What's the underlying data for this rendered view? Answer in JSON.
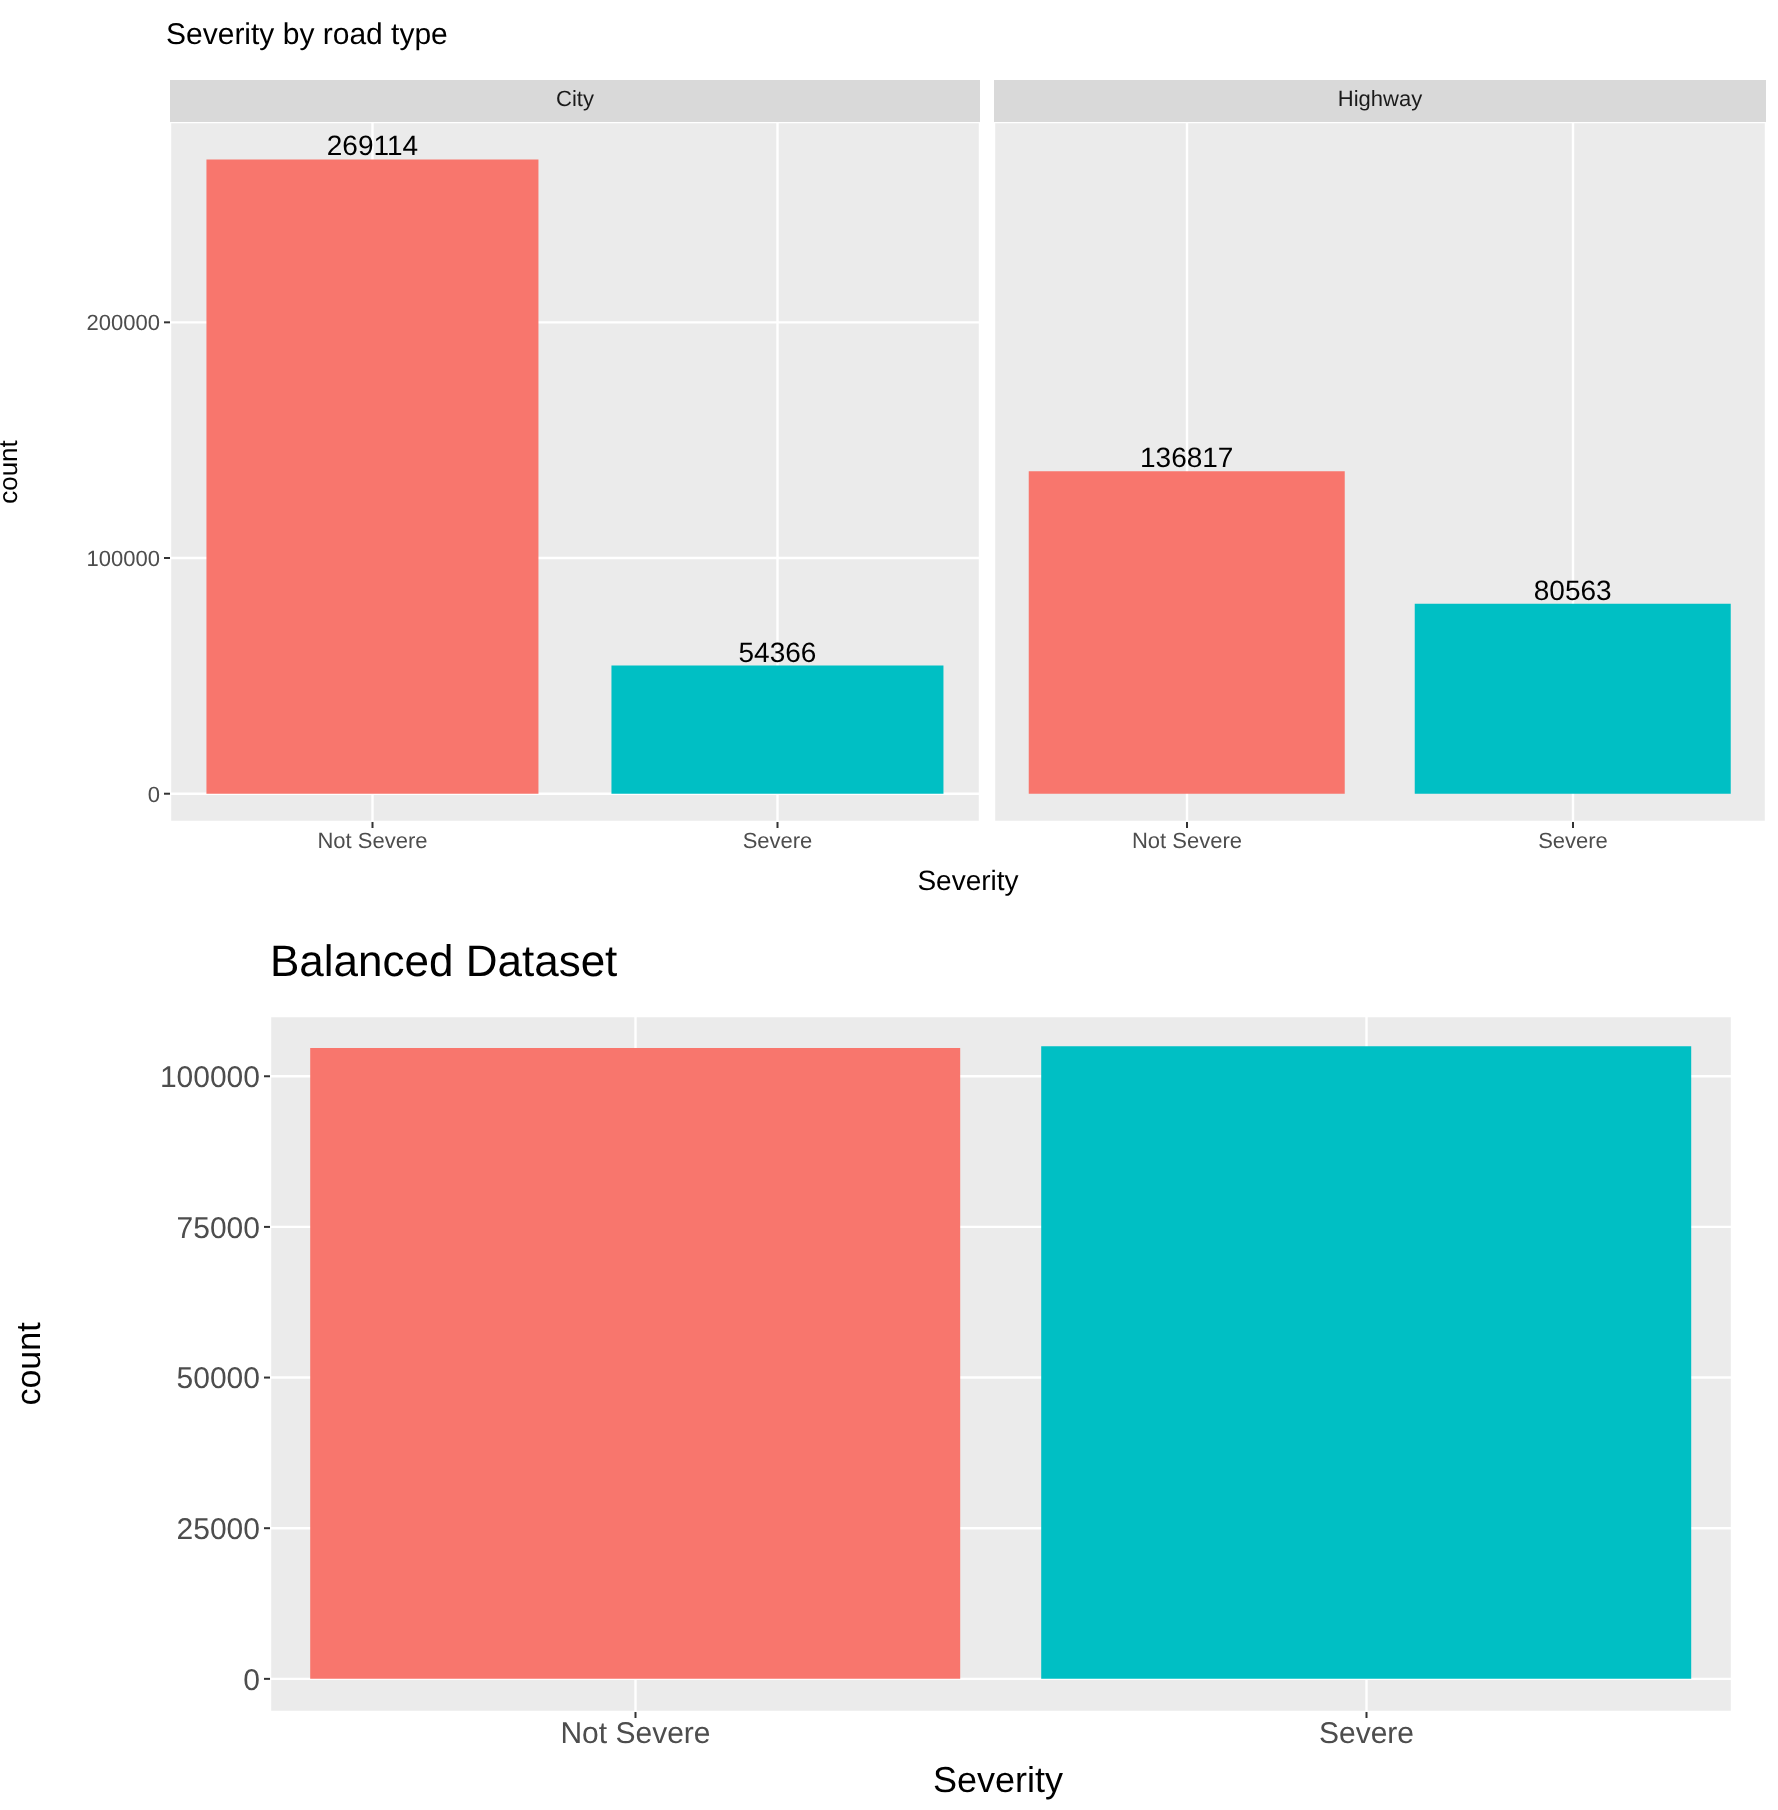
{
  "chart_data": [
    {
      "type": "bar",
      "title": "Severity by road type",
      "subtitle": "City",
      "xlabel": "Severity",
      "ylabel": "count",
      "categories": [
        "Not Severe",
        "Severe"
      ],
      "values": [
        269114,
        54366
      ],
      "colors": [
        "#f8766d",
        "#00bfc4"
      ],
      "ylim": [
        -12000,
        285000
      ],
      "yticks": [
        0,
        100000,
        200000
      ],
      "data_labels": true,
      "grid": true
    },
    {
      "type": "bar",
      "subtitle": "Highway",
      "categories": [
        "Not Severe",
        "Severe"
      ],
      "values": [
        136817,
        80563
      ],
      "colors": [
        "#f8766d",
        "#00bfc4"
      ],
      "ylim": [
        -12000,
        285000
      ],
      "yticks": [
        0,
        100000,
        200000
      ],
      "data_labels": true,
      "grid": true,
      "tick_labels": "x"
    },
    {
      "type": "bar",
      "title": "Balanced Dataset",
      "xlabel": "Severity",
      "ylabel": "count",
      "categories": [
        "Not Severe",
        "Severe"
      ],
      "values": [
        104700,
        105000
      ],
      "colors": [
        "#f8766d",
        "#00bfc4"
      ],
      "ylim": [
        -5500,
        110000
      ],
      "yticks": [
        0,
        25000,
        50000,
        75000,
        100000
      ],
      "grid": true
    }
  ]
}
